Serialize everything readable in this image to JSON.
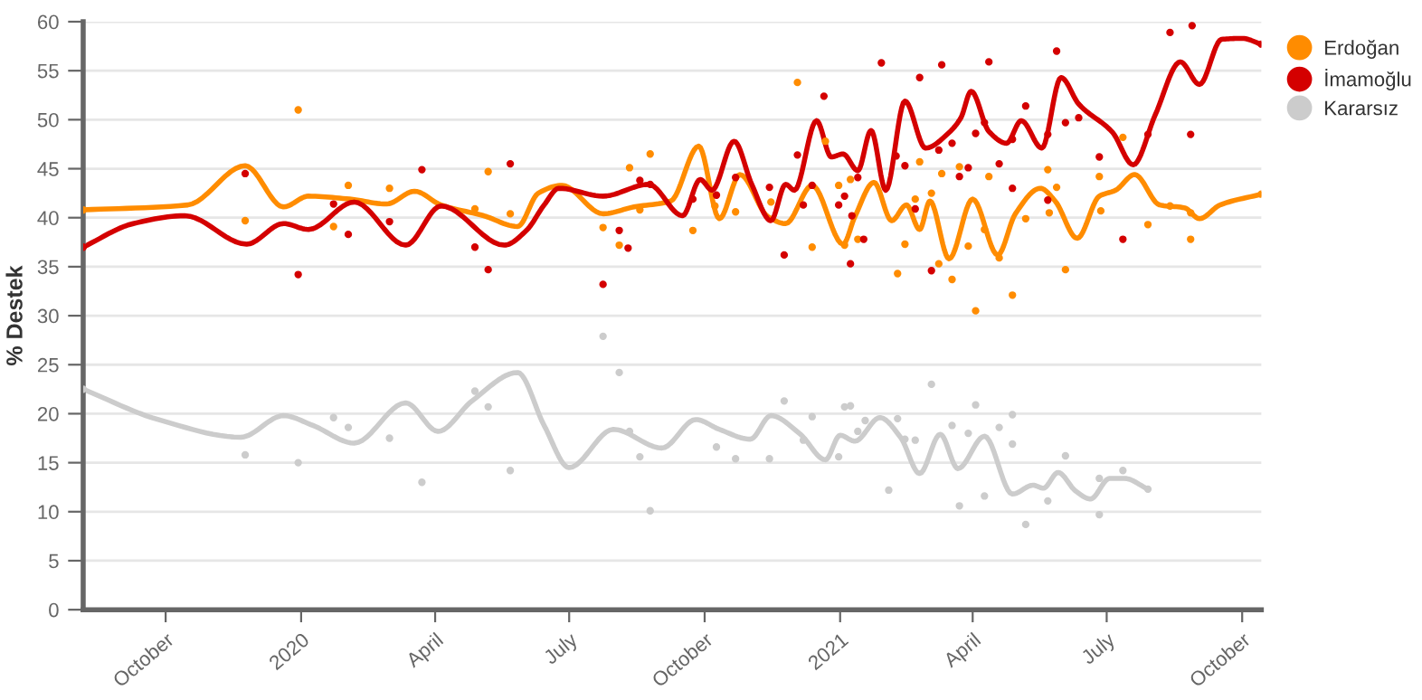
{
  "chart_data": {
    "type": "scatter",
    "ylabel": "% Destek",
    "xlim": [
      "2019-08-06",
      "2021-10-14"
    ],
    "xticks": [
      {
        "value": "2019-10-01",
        "label": "October"
      },
      {
        "value": "2020-01-01",
        "label": "2020"
      },
      {
        "value": "2020-04-01",
        "label": "April"
      },
      {
        "value": "2020-07-01",
        "label": "July"
      },
      {
        "value": "2020-10-01",
        "label": "October"
      },
      {
        "value": "2021-01-01",
        "label": "2021"
      },
      {
        "value": "2021-04-01",
        "label": "April"
      },
      {
        "value": "2021-07-01",
        "label": "July"
      },
      {
        "value": "2021-10-01",
        "label": "October"
      }
    ],
    "ylim": [
      0,
      60
    ],
    "yticks": [
      0,
      5,
      10,
      15,
      20,
      25,
      30,
      35,
      40,
      45,
      50,
      55,
      60
    ],
    "grid": "y",
    "legend": "top right",
    "series": [
      {
        "type": "line",
        "color": "#ff8c00",
        "line_style": "solid",
        "marker": "none",
        "x": [
          "2019-08-06",
          "2019-10-16",
          "2019-11-24",
          "2019-12-20",
          "2020-01-06",
          "2020-02-03",
          "2020-02-28",
          "2020-03-18",
          "2020-04-05",
          "2020-05-04",
          "2020-05-27",
          "2020-06-10",
          "2020-06-26",
          "2020-07-24",
          "2020-08-14",
          "2020-09-08",
          "2020-09-27",
          "2020-10-11",
          "2020-10-25",
          "2020-11-13",
          "2020-11-25",
          "2020-12-13",
          "2021-01-03",
          "2021-01-11",
          "2021-01-24",
          "2021-02-05",
          "2021-02-15",
          "2021-02-24",
          "2021-03-03",
          "2021-03-16",
          "2021-04-01",
          "2021-04-18",
          "2021-04-30",
          "2021-05-17",
          "2021-05-27",
          "2021-06-11",
          "2021-06-26",
          "2021-07-07",
          "2021-07-20",
          "2021-08-06",
          "2021-08-23",
          "2021-09-02",
          "2021-09-16",
          "2021-10-14"
        ],
        "values": [
          40.8,
          41.3,
          45.3,
          41.1,
          42.2,
          41.9,
          41.4,
          42.7,
          41.3,
          40.2,
          39.1,
          42.5,
          43.3,
          40.4,
          41.1,
          41.7,
          47.3,
          39.9,
          44.4,
          40.1,
          39.4,
          43.3,
          37.3,
          40.1,
          43.6,
          39.7,
          41.3,
          38.8,
          41.7,
          35.8,
          41.9,
          36.2,
          40.4,
          43.0,
          41.7,
          37.9,
          42.2,
          42.8,
          44.4,
          41.3,
          41.0,
          39.9,
          41.3,
          42.4
        ]
      },
      {
        "type": "line",
        "color": "#d40000",
        "line_style": "solid",
        "marker": "none",
        "x": [
          "2019-08-06",
          "2019-09-09",
          "2019-10-14",
          "2019-11-25",
          "2019-12-20",
          "2020-01-06",
          "2020-02-06",
          "2020-03-12",
          "2020-04-05",
          "2020-05-18",
          "2020-06-02",
          "2020-06-14",
          "2020-06-24",
          "2020-07-24",
          "2020-08-24",
          "2020-09-16",
          "2020-09-28",
          "2020-10-06",
          "2020-10-21",
          "2020-11-02",
          "2020-11-15",
          "2020-11-25",
          "2020-12-01",
          "2020-12-16",
          "2020-12-26",
          "2021-01-03",
          "2021-01-13",
          "2021-01-22",
          "2021-02-01",
          "2021-02-14",
          "2021-02-28",
          "2021-03-16",
          "2021-03-24",
          "2021-03-31",
          "2021-04-12",
          "2021-04-24",
          "2021-05-04",
          "2021-05-18",
          "2021-05-31",
          "2021-06-12",
          "2021-07-05",
          "2021-07-19",
          "2021-08-03",
          "2021-08-20",
          "2021-09-02",
          "2021-09-17",
          "2021-10-01",
          "2021-10-14"
        ],
        "values": [
          37.0,
          39.4,
          40.2,
          37.3,
          39.4,
          38.8,
          41.6,
          37.2,
          41.2,
          37.2,
          38.7,
          41.3,
          43.0,
          42.2,
          43.4,
          40.2,
          43.9,
          42.8,
          47.8,
          43.4,
          39.7,
          43.4,
          42.8,
          49.9,
          46.2,
          46.5,
          44.8,
          48.9,
          42.8,
          51.9,
          47.1,
          48.7,
          50.2,
          52.9,
          48.8,
          47.6,
          49.9,
          47.1,
          54.3,
          51.6,
          48.7,
          45.4,
          50.5,
          55.9,
          53.6,
          58.2,
          58.3,
          57.7
        ]
      },
      {
        "type": "line",
        "color": "#cccccc",
        "line_style": "solid",
        "marker": "none",
        "x": [
          "2019-08-06",
          "2019-09-26",
          "2019-11-21",
          "2019-12-20",
          "2020-01-09",
          "2020-02-06",
          "2020-03-12",
          "2020-04-03",
          "2020-04-26",
          "2020-05-27",
          "2020-06-14",
          "2020-07-01",
          "2020-07-31",
          "2020-09-02",
          "2020-09-25",
          "2020-10-11",
          "2020-11-01",
          "2020-11-15",
          "2020-12-05",
          "2020-12-22",
          "2021-01-01",
          "2021-01-11",
          "2021-01-28",
          "2021-02-11",
          "2021-02-24",
          "2021-03-10",
          "2021-03-22",
          "2021-04-09",
          "2021-04-28",
          "2021-05-12",
          "2021-05-19",
          "2021-05-29",
          "2021-06-10",
          "2021-06-20",
          "2021-07-03",
          "2021-07-13",
          "2021-07-29"
        ],
        "values": [
          22.5,
          19.4,
          17.6,
          19.8,
          18.8,
          17.0,
          21.1,
          18.2,
          21.3,
          24.2,
          18.8,
          14.5,
          18.4,
          16.5,
          19.4,
          18.4,
          17.4,
          19.8,
          17.9,
          15.3,
          17.8,
          17.2,
          19.6,
          17.6,
          13.9,
          17.9,
          14.4,
          17.7,
          11.8,
          12.7,
          12.4,
          14.0,
          12.1,
          11.3,
          13.4,
          13.4,
          12.3
        ]
      },
      {
        "name": "Erdoğan",
        "color": "#ff8c00",
        "marker": "circle",
        "x": [
          "2019-08-06",
          "2019-11-24",
          "2019-12-30",
          "2020-01-23",
          "2020-02-02",
          "2020-03-01",
          "2020-04-28",
          "2020-05-07",
          "2020-05-22",
          "2020-07-24",
          "2020-08-04",
          "2020-08-11",
          "2020-08-18",
          "2020-08-25",
          "2020-09-23",
          "2020-10-08",
          "2020-10-22",
          "2020-11-15",
          "2020-12-03",
          "2020-12-13",
          "2020-12-22",
          "2020-12-31",
          "2021-01-04",
          "2021-01-08",
          "2021-01-13",
          "2021-02-09",
          "2021-02-14",
          "2021-02-21",
          "2021-02-24",
          "2021-03-04",
          "2021-03-09",
          "2021-03-11",
          "2021-03-18",
          "2021-03-23",
          "2021-03-29",
          "2021-04-03",
          "2021-04-09",
          "2021-04-12",
          "2021-04-19",
          "2021-04-28",
          "2021-05-07",
          "2021-05-22",
          "2021-05-23",
          "2021-05-28",
          "2021-06-03",
          "2021-06-26",
          "2021-06-27",
          "2021-07-12",
          "2021-07-29",
          "2021-08-13",
          "2021-08-27",
          "2021-08-27",
          "2021-10-14"
        ],
        "values": [
          40.8,
          39.7,
          51.0,
          39.1,
          43.3,
          43.0,
          40.9,
          44.7,
          40.4,
          39.0,
          37.2,
          45.1,
          40.8,
          46.5,
          38.7,
          41.2,
          40.6,
          41.6,
          53.8,
          37.0,
          47.8,
          43.3,
          37.2,
          43.9,
          37.8,
          34.3,
          37.3,
          41.9,
          45.7,
          42.5,
          35.3,
          44.5,
          33.7,
          45.2,
          37.1,
          30.5,
          38.8,
          44.2,
          35.9,
          32.1,
          39.9,
          44.9,
          40.5,
          43.1,
          34.7,
          44.2,
          40.7,
          48.2,
          39.3,
          41.2,
          40.5,
          37.8,
          42.4
        ]
      },
      {
        "name": "İmamoğlu",
        "color": "#d40000",
        "marker": "circle",
        "x": [
          "2019-08-06",
          "2019-11-24",
          "2019-12-30",
          "2020-01-23",
          "2020-02-02",
          "2020-03-01",
          "2020-03-23",
          "2020-04-28",
          "2020-05-07",
          "2020-05-22",
          "2020-07-24",
          "2020-08-04",
          "2020-08-10",
          "2020-08-18",
          "2020-08-25",
          "2020-09-23",
          "2020-10-09",
          "2020-10-22",
          "2020-11-14",
          "2020-11-24",
          "2020-12-03",
          "2020-12-07",
          "2020-12-13",
          "2020-12-21",
          "2020-12-31",
          "2021-01-04",
          "2021-01-08",
          "2021-01-09",
          "2021-01-13",
          "2021-01-17",
          "2021-01-29",
          "2021-02-08",
          "2021-02-14",
          "2021-02-21",
          "2021-02-24",
          "2021-03-04",
          "2021-03-09",
          "2021-03-11",
          "2021-03-18",
          "2021-03-23",
          "2021-03-29",
          "2021-04-03",
          "2021-04-09",
          "2021-04-12",
          "2021-04-19",
          "2021-04-28",
          "2021-04-28",
          "2021-05-07",
          "2021-05-22",
          "2021-05-22",
          "2021-05-28",
          "2021-06-03",
          "2021-06-12",
          "2021-06-26",
          "2021-07-12",
          "2021-07-29",
          "2021-08-13",
          "2021-08-27",
          "2021-08-28",
          "2021-10-14"
        ],
        "values": [
          37.0,
          44.5,
          34.2,
          41.4,
          38.3,
          39.6,
          44.9,
          37.0,
          34.7,
          45.5,
          33.2,
          38.7,
          36.9,
          43.8,
          43.4,
          41.9,
          42.3,
          44.1,
          43.1,
          36.2,
          46.4,
          41.3,
          43.3,
          52.4,
          41.3,
          42.2,
          35.3,
          40.2,
          44.1,
          37.8,
          55.8,
          46.3,
          45.3,
          40.9,
          54.3,
          34.6,
          46.9,
          55.6,
          47.6,
          44.2,
          45.1,
          48.6,
          49.7,
          55.9,
          45.5,
          48.0,
          43.0,
          51.4,
          48.5,
          41.8,
          57.0,
          49.7,
          50.2,
          46.2,
          37.8,
          48.5,
          58.9,
          48.5,
          59.6,
          57.7
        ]
      },
      {
        "name": "Kararsız",
        "color": "#cccccc",
        "marker": "circle",
        "x": [
          "2019-08-06",
          "2019-11-24",
          "2019-12-30",
          "2020-01-23",
          "2020-02-02",
          "2020-03-01",
          "2020-03-23",
          "2020-04-28",
          "2020-05-07",
          "2020-05-22",
          "2020-07-24",
          "2020-08-04",
          "2020-08-11",
          "2020-08-18",
          "2020-08-25",
          "2020-10-09",
          "2020-10-22",
          "2020-11-14",
          "2020-11-24",
          "2020-12-07",
          "2020-12-13",
          "2020-12-31",
          "2021-01-04",
          "2021-01-08",
          "2021-01-13",
          "2021-01-18",
          "2021-02-03",
          "2021-02-09",
          "2021-02-14",
          "2021-02-21",
          "2021-03-04",
          "2021-03-18",
          "2021-03-23",
          "2021-03-29",
          "2021-04-03",
          "2021-04-09",
          "2021-04-19",
          "2021-04-28",
          "2021-04-28",
          "2021-05-07",
          "2021-05-22",
          "2021-06-03",
          "2021-06-26",
          "2021-06-26",
          "2021-07-12",
          "2021-07-29"
        ],
        "values": [
          22.5,
          15.8,
          15.0,
          19.6,
          18.6,
          17.5,
          13.0,
          22.3,
          20.7,
          14.2,
          27.9,
          24.2,
          18.2,
          15.6,
          10.1,
          16.6,
          15.4,
          15.4,
          21.3,
          17.3,
          19.7,
          15.6,
          20.7,
          20.8,
          18.2,
          19.3,
          12.2,
          19.5,
          17.4,
          17.3,
          23.0,
          18.8,
          10.6,
          18.0,
          20.9,
          11.6,
          18.6,
          19.9,
          16.9,
          8.7,
          11.1,
          15.7,
          13.4,
          9.7,
          14.2,
          12.3
        ]
      }
    ]
  }
}
